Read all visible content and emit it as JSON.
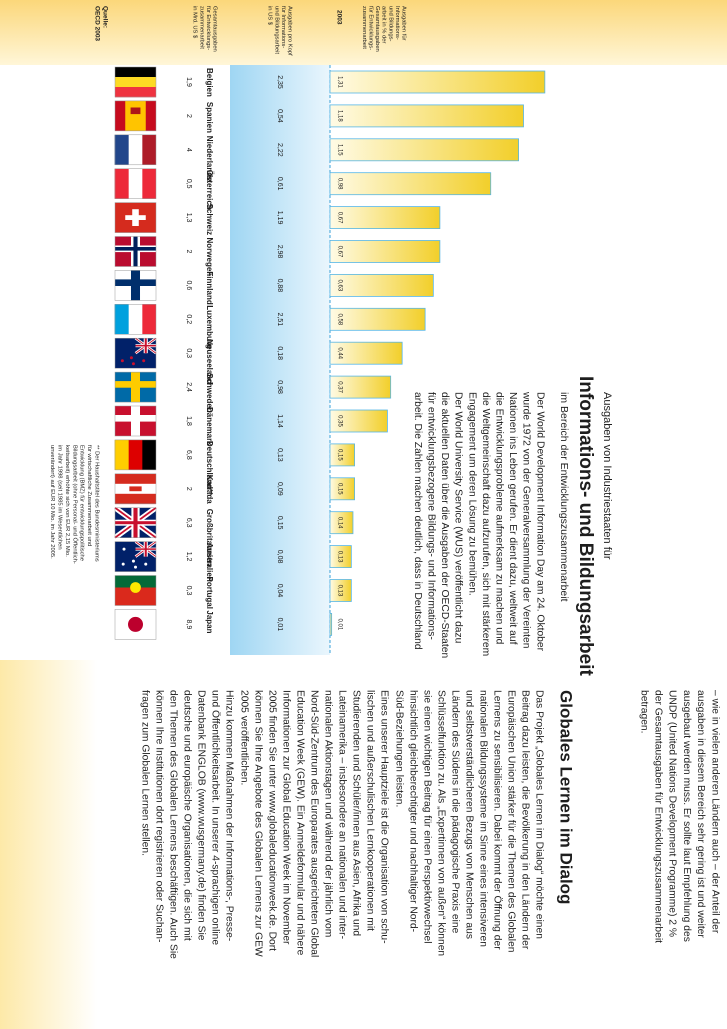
{
  "chart_data": {
    "type": "bar",
    "pretitle": "Ausgaben von Industriestaaten für",
    "title": "Informations- und Bildungsarbeit",
    "subtitle": "im Bereich der Entwicklungszusammenarbeit",
    "value_header": [
      "Ausgaben für",
      "Informations-",
      "und Bildungs-",
      "arbeit in % der",
      "Gesamtausgaben",
      "für Entwicklungs-",
      "zusammenarbeit"
    ],
    "year": "2003",
    "categories": [
      "Belgien",
      "Spanien",
      "Niederlande",
      "Österreich",
      "Schweiz",
      "Norwegen",
      "Finnland",
      "Luxemburg",
      "Neuseeland",
      "Schweden",
      "Dänemark",
      "Deutschland**",
      "Kanada",
      "Großbritannien",
      "Australien",
      "Portugal",
      "Japan"
    ],
    "values": [
      1.31,
      1.18,
      1.15,
      0.98,
      0.67,
      0.67,
      0.63,
      0.58,
      0.44,
      0.37,
      0.35,
      0.15,
      0.15,
      0.14,
      0.13,
      0.13,
      0.01
    ],
    "value_labels": [
      "1,31",
      "1,18",
      "1,15",
      "0,98",
      "0,67",
      "0,67",
      "0,63",
      "0,58",
      "0,44",
      "0,37",
      "0,35",
      "0,15",
      "0,15",
      "0,14",
      "0,13",
      "0,13",
      "0,01"
    ],
    "color": "#f2cf2a"
  },
  "columns": {
    "per_capita": {
      "header": [
        "Ausgaben pro Kopf",
        "für Informations-",
        "und Bildungsarbeit",
        "in US $"
      ],
      "values": [
        "2,35",
        "0,54",
        "2,22",
        "0,61",
        "1,19",
        "2,98",
        "0,88",
        "2,51",
        "0,18",
        "0,98",
        "1,14",
        "0,13",
        "0,09",
        "0,15",
        "0,08",
        "0,04",
        "0,01"
      ]
    },
    "total": {
      "header": [
        "Gesamtausgaben",
        "für Entwicklungs-",
        "zusammenarbeit",
        "in Mrd. US $"
      ],
      "values": [
        "1,9",
        "2",
        "4",
        "0,5",
        "1,3",
        "2",
        "0,6",
        "0,2",
        "0,3",
        "2,4",
        "1,8",
        "6,8",
        "2",
        "6,3",
        "1,2",
        "0,3",
        "8,9"
      ]
    }
  },
  "source": [
    "Quelle:",
    "OECD 2003"
  ],
  "footnote": [
    "** Der Haushaltstitel des Bundesministeriums",
    "für wirtschaftliche Zusammenarbeit und",
    "Entwicklung (BMZ) für entwicklungspolitische",
    "Bildungsarbeit (ohne Personal- und Öffentlich-",
    "keitsarbeit) erhöhte sich von EUR 2,15 Mio.",
    "im Jahr 1998 (seit 1985 im Wesentlichen",
    "unverändert) auf EUR 10 Mio. im Jahr 2005."
  ],
  "intro": [
    "Der World Development Information Day am 24. Oktober",
    "wurde 1972 von der Generalversammlung der Vereinten",
    "Nationen ins Leben gerufen. Er dient dazu, weltweit auf",
    "die Entwicklungsprobleme aufmerksam zu machen und",
    "die Weltgemeinschaft dazu aufzurufen, sich mit stärkerem",
    "Engagement um deren Lösung zu bemühen.",
    "Der World University Service (WUS) veröffentlicht dazu",
    "die aktuellen Daten über die Ausgaben der OECD-Staaten",
    "für entwicklungsbezogene Bildungs- und Informations-",
    "arbeit. Die Zahlen machen deutlich, dass in Deutschland"
  ],
  "continuation": [
    "– wie in vielen anderen Ländern auch – der Anteil der",
    "ausgaben in diesem Bereich sehr gering ist und weiter",
    "ausgebaut werden muss. Er sollte laut Empfehlung des",
    "UNDP (United Nations Development Programme) 2 %",
    "der Gesamtausgaben für Entwicklungszusammenarbeit",
    "betragen."
  ],
  "article": {
    "heading": "Globales Lernen im Dialog",
    "paragraphs": [
      [
        "Das Projekt „Globales Lernen im Dialog“ möchte einen",
        "Beitrag dazu leisten, die Bevölkerung in den Ländern der",
        "Europäischen Union stärker für die Themen des Globalen",
        "Lernens zu sensibilisieren. Dabei kommt der Öffnung der",
        "nationalen Bildungssysteme im Sinne eines intensiveren",
        "und selbstverständlicheren Bezugs von Menschen aus",
        "Ländern des Südens in die pädagogische Praxis eine",
        "Schlüsselfunktion zu. Als „Expertinnen von außen“ können",
        "sie einen wichtigen Beitrag für einen Perspektivwechsel",
        "hinsichtlich gleichberechtigter und nachhaltiger Nord-",
        "Süd-Beziehungen leisten."
      ],
      [
        "Eines unserer Hauptziele ist die Organisation von schu-",
        "lischen und außerschulischen Lernkooperationen mit",
        "Studierenden und Schüler/innen aus Asien, Afrika und",
        "Lateinamerika – insbesondere an nationalen und inter-",
        "nationalen Aktionstagen und während der jährlich vom",
        "Nord-Süd-Zentrum des Europarates ausgerichteten Global",
        "Education Week (GEW). Ein Anmeldeformular und nähere",
        "Informationen zur Global Education Week im November",
        "2005 finden Sie unter www.globaleducationweek.de. Dort",
        "können Sie Ihre Angebote des Globalen Lernens zur GEW",
        "2005 veröffentlichen."
      ],
      [
        "Hinzu kommen Maßnahmen der Informations-, Presse-",
        "und Öffentlichkeitsarbeit. In unserer 4-sprachigen online",
        "Datenbank ENGLOB (www.wusgermany.de) finden Sie",
        "deutsche und europäische Organisationen, die sich mit",
        "den Themen des Globalen Lernens beschäftigen. Auch Sie",
        "können Ihre Institutionen dort registrieren oder Suchan-",
        "fragen zum Globalen Lernen stellen."
      ]
    ]
  }
}
